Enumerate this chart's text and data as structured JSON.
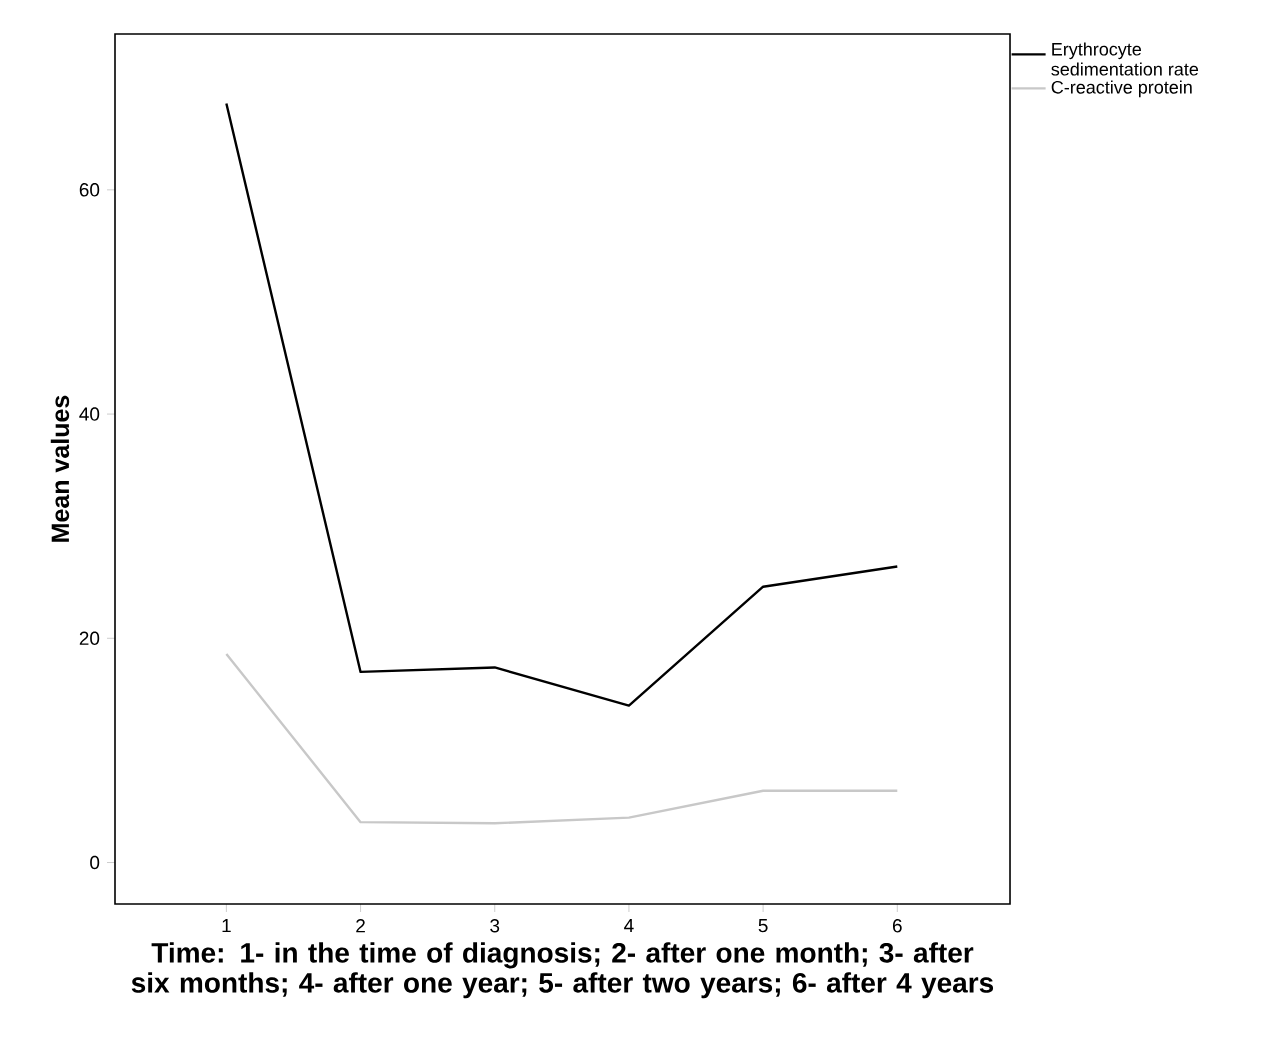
{
  "chart_data": {
    "type": "line",
    "xlabel": "Time: 1- in the time of diagnosis; 2- after one month; 3- after six months; 4- after one year; 5- after two years; 6- after 4 years",
    "ylabel": "Mean values",
    "x": [
      1,
      2,
      3,
      4,
      5,
      6
    ],
    "series": [
      {
        "name": "Erythrocyte sedimentation rate",
        "color": "#000000",
        "values": [
          67.7,
          17.0,
          17.4,
          14.0,
          24.6,
          26.4
        ]
      },
      {
        "name": "C-reactive protein",
        "color": "#c8c8c8",
        "values": [
          18.6,
          3.6,
          3.5,
          4.0,
          6.4,
          6.4
        ]
      }
    ],
    "xlim": [
      0.17,
      6.84
    ],
    "ylim": [
      -3.7,
      73.9
    ],
    "xticks": [
      1,
      2,
      3,
      4,
      5,
      6
    ],
    "yticks": [
      0,
      20,
      40,
      60
    ],
    "grid": false,
    "legend": "top right",
    "marker": "none",
    "line_style": "solid"
  }
}
